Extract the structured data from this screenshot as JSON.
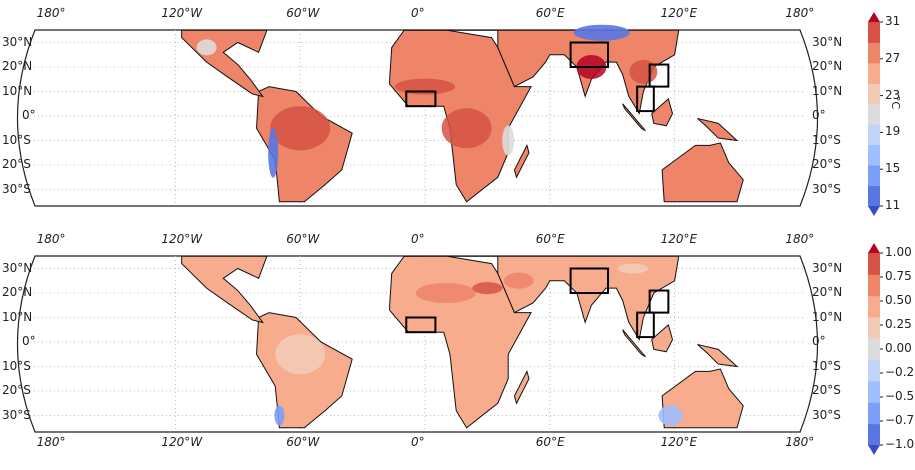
{
  "panels": [
    {
      "id": "top",
      "variable_unit": "°C",
      "lon_labels_top": [
        "180°",
        "120°W",
        "60°W",
        "0°",
        "60°E",
        "120°E",
        "180°"
      ],
      "lat_labels_left": [
        "30°N",
        "20°N",
        "10°N",
        "0°",
        "10°S",
        "20°S",
        "30°S"
      ],
      "lat_labels_right": [
        "30°N",
        "20°N",
        "10°N",
        "0°",
        "10°S",
        "20°S",
        "30°S"
      ],
      "colorbar_ticks": [
        "31",
        "27",
        "23",
        "19",
        "15",
        "11"
      ],
      "colorbar_range": [
        11,
        31
      ]
    },
    {
      "id": "bottom",
      "lon_labels_top": [
        "180°",
        "120°W",
        "60°W",
        "0°",
        "60°E",
        "120°E",
        "180°"
      ],
      "lon_labels_bottom": [
        "180°",
        "120°W",
        "60°W",
        "0°",
        "60°E",
        "120°E",
        "180°"
      ],
      "lat_labels_left": [
        "30°N",
        "20°N",
        "10°N",
        "0°",
        "10°S",
        "20°S",
        "30°S"
      ],
      "lat_labels_right": [
        "30°N",
        "20°N",
        "10°N",
        "0°",
        "10°S",
        "20°S",
        "30°S"
      ],
      "colorbar_ticks": [
        "1.00",
        "0.75",
        "0.50",
        "0.25",
        "0.00",
        "−0.2",
        "−0.5",
        "−0.7",
        "−1.0"
      ],
      "colorbar_range": [
        -1,
        1
      ]
    }
  ],
  "colormap": [
    "#3b4cc0",
    "#5977e3",
    "#7b9ff9",
    "#9ebeff",
    "#c0d4f5",
    "#dddcdc",
    "#f2cbb7",
    "#f7ac8e",
    "#ee8468",
    "#d65244",
    "#b40426"
  ]
}
